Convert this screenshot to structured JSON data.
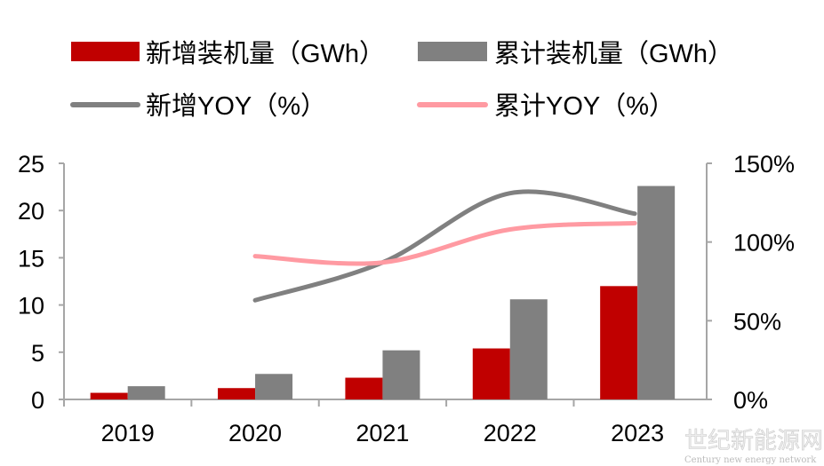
{
  "chart_data": {
    "type": "bar",
    "categories": [
      "2019",
      "2020",
      "2021",
      "2022",
      "2023"
    ],
    "series": [
      {
        "name": "新增装机量（GWh）",
        "kind": "bar",
        "axis": "left",
        "color": "#c00000",
        "values": [
          0.7,
          1.2,
          2.3,
          5.4,
          12.0
        ]
      },
      {
        "name": "累计装机量（GWh）",
        "kind": "bar",
        "axis": "left",
        "color": "#808080",
        "values": [
          1.4,
          2.7,
          5.2,
          10.6,
          22.6
        ]
      },
      {
        "name": "新增YOY（%）",
        "kind": "line",
        "axis": "right",
        "color": "#808080",
        "values": [
          null,
          63,
          87,
          131,
          118
        ]
      },
      {
        "name": "累计YOY（%）",
        "kind": "line",
        "axis": "right",
        "color": "#ff9aa2",
        "values": [
          null,
          91,
          87,
          108,
          112
        ]
      }
    ],
    "left_axis": {
      "ylim": [
        0,
        25
      ],
      "ticks": [
        "0",
        "5",
        "10",
        "15",
        "20",
        "25"
      ]
    },
    "right_axis": {
      "ylim": [
        0,
        150
      ],
      "ticks": [
        "0%",
        "50%",
        "100%",
        "150%"
      ]
    },
    "legend_placement": "top",
    "grid": false,
    "watermark": {
      "main": "世纪新能源网",
      "sub": "Century new energy network"
    }
  }
}
